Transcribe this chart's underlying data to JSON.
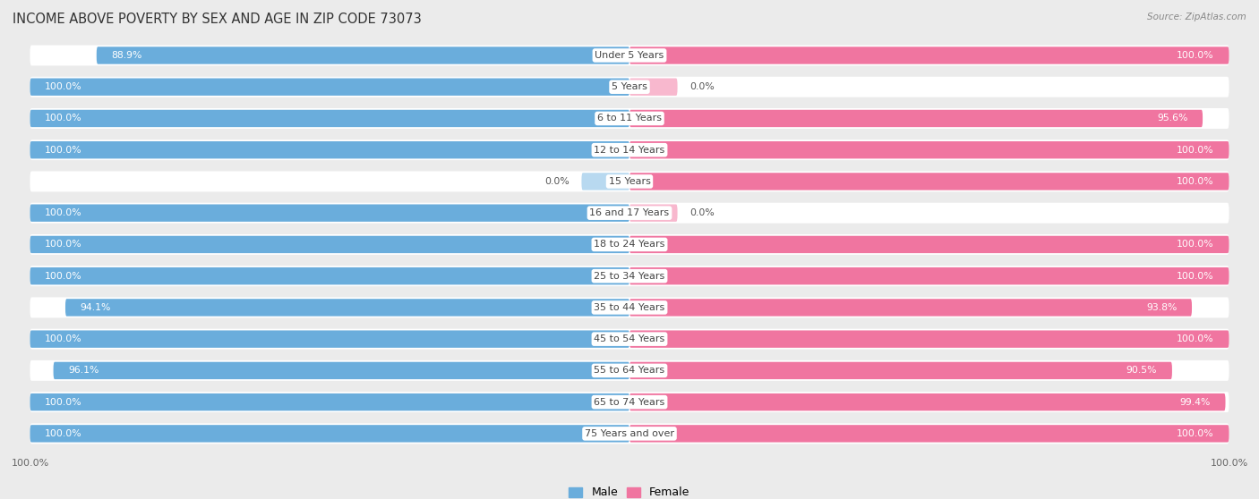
{
  "title": "INCOME ABOVE POVERTY BY SEX AND AGE IN ZIP CODE 73073",
  "source": "Source: ZipAtlas.com",
  "categories": [
    "Under 5 Years",
    "5 Years",
    "6 to 11 Years",
    "12 to 14 Years",
    "15 Years",
    "16 and 17 Years",
    "18 to 24 Years",
    "25 to 34 Years",
    "35 to 44 Years",
    "45 to 54 Years",
    "55 to 64 Years",
    "65 to 74 Years",
    "75 Years and over"
  ],
  "male_values": [
    88.9,
    100.0,
    100.0,
    100.0,
    0.0,
    100.0,
    100.0,
    100.0,
    94.1,
    100.0,
    96.1,
    100.0,
    100.0
  ],
  "female_values": [
    100.0,
    0.0,
    95.6,
    100.0,
    100.0,
    0.0,
    100.0,
    100.0,
    93.8,
    100.0,
    90.5,
    99.4,
    100.0
  ],
  "male_color": "#6aaddc",
  "male_color_light": "#b8d9f0",
  "female_color": "#f075a0",
  "female_color_light": "#f8b8ce",
  "background_color": "#ebebeb",
  "bar_background": "#ffffff",
  "title_fontsize": 10.5,
  "label_fontsize": 8.0,
  "value_fontsize": 7.8,
  "tick_fontsize": 8,
  "legend_fontsize": 9
}
